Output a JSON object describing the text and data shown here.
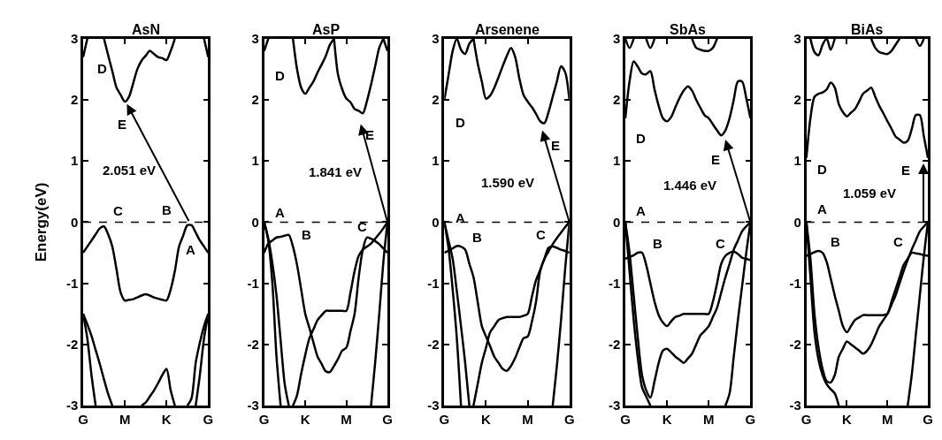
{
  "chart_data": [
    {
      "type": "line",
      "title": "AsN",
      "ylabel": "Energy(eV)",
      "categories": [
        "G",
        null,
        null,
        null,
        null,
        null,
        null,
        null,
        null,
        null,
        "M",
        null,
        null,
        null,
        null,
        null,
        null,
        null,
        null,
        null,
        "K",
        null,
        null,
        null,
        null,
        null,
        null,
        null,
        null,
        null,
        "G"
      ],
      "ylim": [
        -3,
        3
      ],
      "yticks": [
        -3,
        -2,
        -1,
        0,
        1,
        2,
        3
      ],
      "ref_lines": [
        {
          "axis": "y",
          "value": 0,
          "color": "#000000",
          "line_style": "dashed"
        }
      ],
      "series": [
        {
          "color": "#000000",
          "values": [
            null,
            null,
            null,
            null,
            null,
            3,
            2.73,
            2.47,
            2.2,
            2.08,
            1.97,
            2.05,
            2.27,
            2.5,
            2.64,
            2.72,
            2.8,
            2.75,
            2.7,
            2.68,
            2.65,
            2.8,
            3,
            null,
            null,
            null,
            null,
            null,
            null,
            null,
            null
          ]
        },
        {
          "color": "#000000",
          "values": [
            2.7,
            3,
            null,
            null,
            null,
            null,
            null,
            null,
            null,
            null,
            null,
            null,
            null,
            null,
            null,
            null,
            null,
            null,
            null,
            null,
            null,
            null,
            null,
            null,
            null,
            null,
            null,
            null,
            null,
            null,
            null
          ]
        },
        {
          "color": "#000000",
          "values": [
            null,
            null,
            null,
            null,
            null,
            null,
            null,
            null,
            null,
            null,
            null,
            null,
            null,
            null,
            null,
            null,
            null,
            null,
            null,
            null,
            null,
            null,
            null,
            null,
            null,
            null,
            null,
            null,
            null,
            3,
            2.7
          ]
        },
        {
          "color": "#000000",
          "values": [
            -0.5,
            -0.4,
            -0.3,
            -0.2,
            -0.1,
            -0.07,
            -0.2,
            -0.4,
            -0.77,
            -1.15,
            -1.28,
            -1.27,
            -1.26,
            -1.23,
            -1.2,
            -1.18,
            -1.2,
            -1.23,
            -1.25,
            -1.27,
            -1.28,
            -1.1,
            -0.8,
            -0.4,
            -0.22,
            -0.05,
            -0.05,
            -0.17,
            -0.3,
            -0.4,
            -0.5
          ]
        },
        {
          "color": "#000000",
          "values": [
            -1.5,
            -1.9,
            -2.5,
            -3,
            null,
            null,
            null,
            null,
            null,
            null,
            null,
            null,
            null,
            null,
            null,
            null,
            null,
            null,
            null,
            null,
            null,
            null,
            null,
            null,
            null,
            null,
            null,
            null,
            null,
            null,
            null
          ]
        },
        {
          "color": "#000000",
          "values": [
            -1.5,
            -1.67,
            -1.86,
            -2.09,
            -2.32,
            -2.57,
            -2.81,
            -3,
            null,
            null,
            null,
            null,
            null,
            null,
            null,
            null,
            null,
            null,
            null,
            null,
            null,
            null,
            null,
            null,
            null,
            null,
            null,
            null,
            null,
            null,
            null
          ]
        },
        {
          "color": "#000000",
          "values": [
            null,
            null,
            null,
            null,
            null,
            null,
            null,
            null,
            null,
            null,
            null,
            null,
            null,
            null,
            null,
            null,
            null,
            null,
            null,
            null,
            null,
            null,
            null,
            null,
            null,
            null,
            null,
            -3,
            -2.5,
            -1.9,
            -1.5
          ]
        },
        {
          "color": "#000000",
          "values": [
            null,
            null,
            null,
            null,
            null,
            null,
            null,
            null,
            null,
            null,
            null,
            null,
            null,
            null,
            null,
            null,
            null,
            null,
            null,
            null,
            null,
            null,
            null,
            null,
            null,
            -3,
            -2.88,
            -2.3,
            -1.97,
            -1.7,
            -1.5
          ]
        },
        {
          "color": "#000000",
          "values": [
            null,
            null,
            null,
            null,
            null,
            null,
            null,
            null,
            null,
            null,
            null,
            null,
            null,
            null,
            -3,
            -2.95,
            -2.85,
            -2.75,
            -2.63,
            -2.5,
            -2.4,
            -2.75,
            -3,
            null,
            null,
            null,
            null,
            null,
            null,
            null,
            null
          ]
        }
      ],
      "annotations": [
        "2.051 eV",
        "D",
        "E",
        "C",
        "B",
        "A"
      ]
    },
    {
      "type": "line",
      "title": "AsP",
      "categories": [
        "G",
        null,
        null,
        null,
        null,
        null,
        null,
        null,
        null,
        null,
        "K",
        null,
        null,
        null,
        null,
        null,
        null,
        null,
        null,
        null,
        "M",
        null,
        null,
        null,
        null,
        null,
        null,
        null,
        null,
        null,
        "G"
      ],
      "ylim": [
        -3,
        3
      ],
      "yticks": [
        -3,
        -2,
        -1,
        0,
        1,
        2,
        3
      ],
      "ref_lines": [
        {
          "axis": "y",
          "value": 0,
          "color": "#000000",
          "line_style": "dashed"
        }
      ],
      "series": [
        {
          "color": "#000000",
          "values": [
            null,
            null,
            null,
            null,
            null,
            null,
            null,
            3,
            2.5,
            2.2,
            2.1,
            2.2,
            2.3,
            2.45,
            2.58,
            2.72,
            2.9,
            3,
            null,
            null,
            null,
            null,
            null,
            null,
            null,
            null,
            null,
            null,
            null,
            null,
            null
          ]
        },
        {
          "color": "#000000",
          "values": [
            null,
            null,
            null,
            null,
            null,
            null,
            null,
            null,
            null,
            null,
            null,
            null,
            null,
            null,
            null,
            null,
            null,
            3,
            2.4,
            2.17,
            2.02,
            1.96,
            1.85,
            1.82,
            1.78,
            1.98,
            2.25,
            2.55,
            2.85,
            3,
            null
          ]
        },
        {
          "color": "#000000",
          "values": [
            2.8,
            3,
            null,
            null,
            null,
            null,
            null,
            null,
            null,
            null,
            null,
            null,
            null,
            null,
            null,
            null,
            null,
            null,
            null,
            null,
            null,
            null,
            null,
            null,
            null,
            null,
            null,
            null,
            null,
            null,
            null
          ]
        },
        {
          "color": "#000000",
          "values": [
            null,
            null,
            null,
            null,
            null,
            null,
            null,
            null,
            null,
            null,
            null,
            null,
            null,
            null,
            null,
            null,
            null,
            null,
            null,
            null,
            null,
            null,
            null,
            null,
            null,
            null,
            null,
            null,
            null,
            3,
            2.8
          ]
        },
        {
          "color": "#000000",
          "values": [
            -0.5,
            -0.35,
            -0.3,
            -0.25,
            -0.24,
            -0.22,
            -0.21,
            -0.4,
            -0.7,
            -1.1,
            -1.5,
            -1.73,
            -1.97,
            -2.2,
            -2.32,
            -2.44,
            -2.45,
            -2.35,
            -2.23,
            -2.1,
            -2.05,
            -1.78,
            -1.5,
            -0.9,
            -0.45,
            -0.25,
            -0.27,
            -0.31,
            -0.36,
            -0.43,
            -0.5
          ]
        },
        {
          "color": "#000000",
          "values": [
            0,
            -0.3,
            -1.0,
            -2.2,
            -3,
            null,
            null,
            null,
            null,
            null,
            null,
            null,
            null,
            null,
            null,
            null,
            null,
            null,
            null,
            null,
            null,
            null,
            null,
            null,
            null,
            null,
            null,
            null,
            null,
            null,
            null
          ]
        },
        {
          "color": "#000000",
          "values": [
            0,
            -0.27,
            -0.67,
            -1.2,
            -1.93,
            -2.65,
            -3,
            null,
            null,
            null,
            null,
            null,
            null,
            null,
            null,
            null,
            null,
            null,
            null,
            null,
            null,
            null,
            null,
            null,
            null,
            null,
            null,
            null,
            null,
            null,
            null
          ]
        },
        {
          "color": "#000000",
          "values": [
            null,
            null,
            null,
            null,
            null,
            null,
            null,
            -3,
            -2.83,
            -2.48,
            -2.17,
            -1.9,
            -1.75,
            -1.6,
            -1.52,
            -1.45,
            -1.45,
            -1.45,
            -1.45,
            -1.45,
            -1.45,
            -1.15,
            -0.8,
            -0.55,
            -0.45,
            -0.4,
            -0.35,
            -0.27,
            -0.19,
            -0.1,
            0
          ]
        },
        {
          "color": "#000000",
          "values": [
            null,
            null,
            null,
            null,
            null,
            null,
            null,
            null,
            null,
            null,
            null,
            null,
            null,
            null,
            null,
            null,
            null,
            null,
            null,
            null,
            null,
            null,
            null,
            null,
            null,
            null,
            -3,
            -2.3,
            -1.5,
            -0.65,
            0
          ]
        }
      ],
      "annotations": [
        "1.841 eV",
        "D",
        "E",
        "A",
        "B",
        "C"
      ]
    },
    {
      "type": "line",
      "title": "Arsenene",
      "categories": [
        "G",
        null,
        null,
        null,
        null,
        null,
        null,
        null,
        null,
        null,
        "K",
        null,
        null,
        null,
        null,
        null,
        null,
        null,
        null,
        null,
        "M",
        null,
        null,
        null,
        null,
        null,
        null,
        null,
        null,
        null,
        "G"
      ],
      "ylim": [
        -3,
        3
      ],
      "yticks": [
        -3,
        -2,
        -1,
        0,
        1,
        2,
        3
      ],
      "ref_lines": [
        {
          "axis": "y",
          "value": 0,
          "color": "#000000",
          "line_style": "dashed"
        }
      ],
      "series": [
        {
          "color": "#000000",
          "values": [
            2.0,
            2.4,
            2.8,
            3,
            2.82,
            2.75,
            2.92,
            3,
            null,
            null,
            null,
            null,
            null,
            null,
            null,
            null,
            null,
            null,
            null,
            null,
            null,
            null,
            null,
            null,
            null,
            null,
            null,
            null,
            null,
            null,
            null
          ]
        },
        {
          "color": "#000000",
          "values": [
            null,
            null,
            null,
            null,
            null,
            null,
            null,
            3,
            2.6,
            2.3,
            2.02,
            2.07,
            2.2,
            2.37,
            2.55,
            2.72,
            2.85,
            2.7,
            2.35,
            2.08,
            1.97,
            1.88,
            1.77,
            1.65,
            1.62,
            1.8,
            2.05,
            2.3,
            2.55,
            2.45,
            2.0
          ]
        },
        {
          "color": "#000000",
          "values": [
            -0.5,
            -0.47,
            -0.43,
            -0.39,
            -0.4,
            -0.45,
            -0.68,
            -0.9,
            -1.3,
            -1.7,
            -1.87,
            -2.03,
            -2.2,
            -2.3,
            -2.4,
            -2.43,
            -2.35,
            -2.22,
            -2.05,
            -1.9,
            -1.87,
            -1.63,
            -1.3,
            -0.8,
            -0.6,
            -0.42,
            -0.4,
            -0.42,
            -0.45,
            -0.47,
            -0.5
          ]
        },
        {
          "color": "#000000",
          "values": [
            0,
            -0.42,
            -1.1,
            -1.9,
            -3,
            null,
            null,
            null,
            null,
            null,
            null,
            null,
            null,
            null,
            null,
            null,
            null,
            null,
            null,
            null,
            null,
            null,
            null,
            null,
            null,
            null,
            null,
            null,
            null,
            null,
            null
          ]
        },
        {
          "color": "#000000",
          "values": [
            0,
            -0.3,
            -0.6,
            -1.13,
            -1.7,
            -2.3,
            -3,
            null,
            null,
            null,
            null,
            null,
            null,
            null,
            null,
            null,
            null,
            null,
            null,
            null,
            null,
            null,
            null,
            null,
            null,
            null,
            null,
            null,
            null,
            null,
            null
          ]
        },
        {
          "color": "#000000",
          "values": [
            null,
            null,
            null,
            null,
            null,
            null,
            null,
            -3,
            -2.65,
            -2.3,
            -2.05,
            -1.8,
            -1.7,
            -1.6,
            -1.57,
            -1.55,
            -1.55,
            -1.55,
            -1.55,
            -1.53,
            -1.5,
            -1.22,
            -0.95,
            -0.78,
            -0.6,
            -0.48,
            -0.36,
            -0.26,
            -0.17,
            -0.08,
            0
          ]
        },
        {
          "color": "#000000",
          "values": [
            null,
            null,
            null,
            null,
            null,
            null,
            null,
            null,
            null,
            null,
            null,
            null,
            null,
            null,
            null,
            null,
            null,
            null,
            null,
            null,
            null,
            null,
            null,
            null,
            null,
            null,
            -3,
            -2.35,
            -1.6,
            -0.75,
            0
          ]
        }
      ],
      "annotations": [
        "1.590 eV",
        "D",
        "E",
        "A",
        "B",
        "C"
      ]
    },
    {
      "type": "line",
      "title": "SbAs",
      "categories": [
        "G",
        null,
        null,
        null,
        null,
        null,
        null,
        null,
        null,
        null,
        "K",
        null,
        null,
        null,
        null,
        null,
        null,
        null,
        null,
        null,
        "M",
        null,
        null,
        null,
        null,
        null,
        null,
        null,
        null,
        null,
        "G"
      ],
      "ylim": [
        -3,
        3
      ],
      "yticks": [
        -3,
        -2,
        -1,
        0,
        1,
        2,
        3
      ],
      "ref_lines": [
        {
          "axis": "y",
          "value": 0,
          "color": "#000000",
          "line_style": "dashed"
        }
      ],
      "series": [
        {
          "color": "#000000",
          "values": [
            3,
            2.85,
            3,
            null,
            null,
            3,
            2.85,
            3,
            null,
            null,
            null,
            null,
            null,
            null,
            null,
            null,
            null,
            null,
            null,
            null,
            null,
            null,
            null,
            null,
            null,
            null,
            null,
            null,
            null,
            null,
            null
          ]
        },
        {
          "color": "#000000",
          "values": [
            null,
            null,
            null,
            null,
            null,
            null,
            null,
            null,
            null,
            null,
            null,
            null,
            null,
            null,
            null,
            null,
            3,
            2.85,
            2.82,
            2.8,
            2.8,
            2.85,
            3,
            null,
            null,
            null,
            null,
            null,
            null,
            null,
            null
          ]
        },
        {
          "color": "#000000",
          "values": [
            1.7,
            2.3,
            2.63,
            2.54,
            2.43,
            2.42,
            2.47,
            2.17,
            1.9,
            1.7,
            1.65,
            1.72,
            1.88,
            2.03,
            2.15,
            2.22,
            2.15,
            2.0,
            1.87,
            1.75,
            1.7,
            1.6,
            1.5,
            1.42,
            1.5,
            1.7,
            2.0,
            2.3,
            2.3,
            2.03,
            1.7
          ]
        },
        {
          "color": "#000000",
          "values": [
            -0.6,
            -0.57,
            -0.54,
            -0.5,
            -0.5,
            -0.7,
            -1.0,
            -1.3,
            -1.52,
            -1.64,
            -1.7,
            -1.62,
            -1.55,
            -1.53,
            -1.5,
            -1.5,
            -1.5,
            -1.5,
            -1.5,
            -1.5,
            -1.5,
            -1.3,
            -1.0,
            -0.68,
            -0.55,
            -0.5,
            -0.48,
            -0.52,
            -0.58,
            -0.6,
            -0.62
          ]
        },
        {
          "color": "#000000",
          "values": [
            0,
            -0.5,
            -1.2,
            -1.9,
            -2.5,
            -2.75,
            -2.87,
            -2.6,
            -2.3,
            -2.1,
            -2.07,
            -2.13,
            -2.2,
            -2.25,
            -2.3,
            -2.23,
            -2.15,
            -2.0,
            -1.85,
            -1.78,
            -1.7,
            -1.55,
            -1.4,
            -1.15,
            -0.9,
            -0.68,
            -0.45,
            -0.3,
            -0.15,
            -0.07,
            0
          ]
        },
        {
          "color": "#000000",
          "values": [
            0,
            -0.8,
            -1.6,
            -2.23,
            -2.7,
            -2.85,
            -3,
            null,
            null,
            null,
            null,
            null,
            null,
            null,
            null,
            null,
            null,
            null,
            null,
            null,
            null,
            null,
            null,
            null,
            null,
            null,
            null,
            null,
            null,
            null,
            null
          ]
        },
        {
          "color": "#000000",
          "values": [
            null,
            null,
            null,
            null,
            null,
            null,
            null,
            null,
            null,
            null,
            null,
            null,
            null,
            null,
            null,
            null,
            null,
            null,
            null,
            null,
            null,
            null,
            null,
            null,
            -3,
            -2.8,
            -2.2,
            -1.6,
            -1.05,
            -0.5,
            0
          ]
        }
      ],
      "annotations": [
        "1.446 eV",
        "D",
        "E",
        "A",
        "B",
        "C"
      ]
    },
    {
      "type": "line",
      "title": "BiAs",
      "categories": [
        "G",
        null,
        null,
        null,
        null,
        null,
        null,
        null,
        null,
        null,
        "K",
        null,
        null,
        null,
        null,
        null,
        null,
        null,
        null,
        null,
        "M",
        null,
        null,
        null,
        null,
        null,
        null,
        null,
        null,
        null,
        "G"
      ],
      "ylim": [
        -3,
        3
      ],
      "yticks": [
        -3,
        -2,
        -1,
        0,
        1,
        2,
        3
      ],
      "ref_lines": [
        {
          "axis": "y",
          "value": 0,
          "color": "#000000",
          "line_style": "dashed"
        }
      ],
      "series": [
        {
          "color": "#000000",
          "values": [
            null,
            3,
            2.78,
            2.73,
            2.9,
            3,
            2.82,
            3,
            null,
            null,
            null,
            null,
            null,
            null,
            null,
            null,
            null,
            null,
            null,
            null,
            null,
            null,
            null,
            null,
            null,
            null,
            null,
            null,
            null,
            null,
            null
          ]
        },
        {
          "color": "#000000",
          "values": [
            null,
            null,
            null,
            null,
            null,
            null,
            null,
            null,
            null,
            null,
            null,
            null,
            null,
            null,
            null,
            null,
            3,
            2.85,
            2.78,
            2.76,
            2.75,
            2.8,
            2.9,
            3,
            null,
            null,
            null,
            null,
            null,
            null,
            null
          ]
        },
        {
          "color": "#000000",
          "values": [
            null,
            null,
            null,
            null,
            null,
            null,
            null,
            null,
            null,
            null,
            null,
            null,
            null,
            null,
            null,
            null,
            null,
            null,
            null,
            null,
            null,
            null,
            null,
            null,
            null,
            null,
            null,
            3,
            2.88,
            3,
            null
          ]
        },
        {
          "color": "#000000",
          "values": [
            1.05,
            1.7,
            2.05,
            2.1,
            2.12,
            2.17,
            2.28,
            2.2,
            1.93,
            1.8,
            1.73,
            1.79,
            1.85,
            1.97,
            2.1,
            2.15,
            2.2,
            2.05,
            1.9,
            1.78,
            1.65,
            1.53,
            1.4,
            1.35,
            1.3,
            1.33,
            1.52,
            1.75,
            1.75,
            1.4,
            1.05
          ]
        },
        {
          "color": "#000000",
          "values": [
            -0.55,
            -0.52,
            -0.49,
            -0.47,
            -0.5,
            -0.65,
            -0.92,
            -1.2,
            -1.45,
            -1.7,
            -1.8,
            -1.7,
            -1.6,
            -1.56,
            -1.52,
            -1.52,
            -1.52,
            -1.52,
            -1.52,
            -1.52,
            -1.5,
            -1.3,
            -1.1,
            -0.9,
            -0.7,
            -0.6,
            -0.5,
            -0.51,
            -0.52,
            -0.54,
            -0.55
          ]
        },
        {
          "color": "#000000",
          "values": [
            0,
            -0.6,
            -1.5,
            -2.05,
            -2.4,
            -2.6,
            -2.62,
            -2.5,
            -2.2,
            -2.07,
            -1.95,
            -2.0,
            -2.05,
            -2.1,
            -2.15,
            -2.1,
            -2.0,
            -1.85,
            -1.7,
            -1.6,
            -1.5,
            -1.35,
            -1.2,
            -1.0,
            -0.8,
            -0.62,
            -0.45,
            -0.3,
            -0.15,
            -0.07,
            0
          ]
        },
        {
          "color": "#000000",
          "values": [
            0,
            -0.9,
            -1.8,
            -2.25,
            -2.5,
            -2.65,
            -2.73,
            -2.8,
            -3,
            null,
            null,
            null,
            null,
            null,
            null,
            null,
            null,
            null,
            null,
            null,
            null,
            null,
            null,
            null,
            null,
            null,
            null,
            null,
            null,
            null,
            null
          ]
        },
        {
          "color": "#000000",
          "values": [
            null,
            null,
            null,
            null,
            null,
            null,
            null,
            null,
            null,
            null,
            null,
            null,
            null,
            null,
            null,
            null,
            null,
            null,
            null,
            null,
            null,
            null,
            null,
            null,
            null,
            -3,
            -2.5,
            -1.85,
            -1.2,
            -0.55,
            0
          ]
        }
      ],
      "annotations": [
        "1.059 eV",
        "D",
        "E",
        "A",
        "B",
        "C"
      ]
    }
  ]
}
